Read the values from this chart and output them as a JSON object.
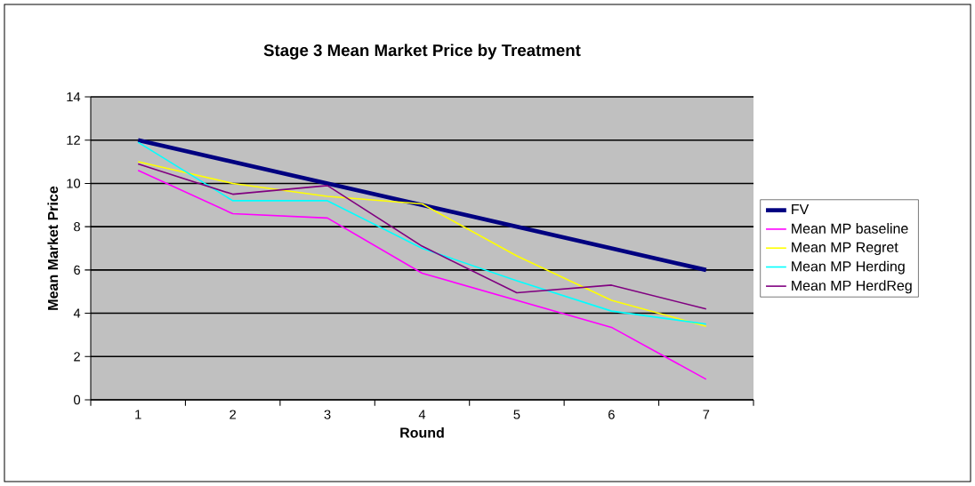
{
  "chart_data": {
    "type": "line",
    "title": "Stage 3 Mean Market Price by Treatment",
    "xlabel": "Round",
    "ylabel": "Mean Market Price",
    "categories": [
      "1",
      "2",
      "3",
      "4",
      "5",
      "6",
      "7"
    ],
    "series": [
      {
        "name": "FV",
        "color": "#000080",
        "values": [
          12,
          11,
          10,
          9,
          8,
          7,
          6
        ]
      },
      {
        "name": "Mean MP baseline",
        "color": "#ff00ff",
        "values": [
          10.6,
          8.6,
          8.4,
          5.85,
          4.6,
          3.35,
          0.95
        ]
      },
      {
        "name": "Mean MP Regret",
        "color": "#ffff00",
        "values": [
          11,
          10,
          9.4,
          9.05,
          6.65,
          4.6,
          3.4
        ]
      },
      {
        "name": "Mean MP Herding",
        "color": "#00ffff",
        "values": [
          11.9,
          9.2,
          9.2,
          7.0,
          5.5,
          4.1,
          3.5
        ]
      },
      {
        "name": "Mean MP HerdReg",
        "color": "#800080",
        "values": [
          10.9,
          9.5,
          9.9,
          7.1,
          4.95,
          5.3,
          4.2
        ]
      }
    ],
    "ylim": [
      0,
      14
    ],
    "yticks": [
      0,
      2,
      4,
      6,
      8,
      10,
      12,
      14
    ],
    "grid": "y",
    "legend": "right"
  }
}
